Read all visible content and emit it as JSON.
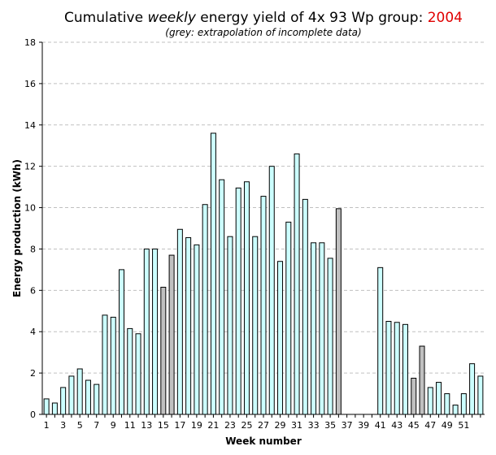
{
  "title": {
    "prefix": "Cumulative ",
    "emphasis": "weekly",
    "middle": " energy yield of 4x 93 Wp group: ",
    "year": "2004",
    "year_color": "#e00000"
  },
  "subtitle": "(grey: extrapolation of incomplete data)",
  "colors": {
    "measured_bar": "#ccffff",
    "extrapolated_bar": "#c0c0c0",
    "bar_stroke": "#000000",
    "grid": "#c0c0c0"
  },
  "chart_data": {
    "type": "bar",
    "title": "Cumulative weekly energy yield of 4x 93 Wp group: 2004",
    "subtitle": "(grey: extrapolation of incomplete data)",
    "xlabel": "Week number",
    "ylabel": "Energy production (kWh)",
    "ylim": [
      0,
      18
    ],
    "yticks": [
      0,
      2,
      4,
      6,
      8,
      10,
      12,
      14,
      16,
      18
    ],
    "xtick_labels": [
      "1",
      "3",
      "5",
      "7",
      "9",
      "11",
      "13",
      "15",
      "17",
      "19",
      "21",
      "23",
      "25",
      "27",
      "29",
      "31",
      "33",
      "35",
      "37",
      "39",
      "41",
      "43",
      "45",
      "47",
      "49",
      "51"
    ],
    "grid": "horizontal dashed",
    "categories": [
      1,
      2,
      3,
      4,
      5,
      6,
      7,
      8,
      9,
      10,
      11,
      12,
      13,
      14,
      15,
      16,
      17,
      18,
      19,
      20,
      21,
      22,
      23,
      24,
      25,
      26,
      27,
      28,
      29,
      30,
      31,
      32,
      33,
      34,
      35,
      36,
      37,
      38,
      39,
      40,
      41,
      42,
      43,
      44,
      45,
      46,
      47,
      48,
      49,
      50,
      51,
      52,
      53
    ],
    "values": [
      0.75,
      0.55,
      1.3,
      1.85,
      2.2,
      1.65,
      1.45,
      4.8,
      4.7,
      7.0,
      4.15,
      3.9,
      8.0,
      8.0,
      6.15,
      7.7,
      8.95,
      8.55,
      8.2,
      10.15,
      13.6,
      11.35,
      8.6,
      10.95,
      11.25,
      8.6,
      10.55,
      12.0,
      7.4,
      9.3,
      12.6,
      10.4,
      8.3,
      8.3,
      7.55,
      9.95,
      0,
      0,
      0,
      0,
      7.1,
      4.5,
      4.45,
      4.35,
      1.75,
      3.3,
      1.3,
      1.55,
      1.0,
      0.45,
      1.0,
      2.45,
      1.85
    ],
    "extrapolated_weeks": [
      15,
      16,
      36,
      45,
      46
    ]
  }
}
